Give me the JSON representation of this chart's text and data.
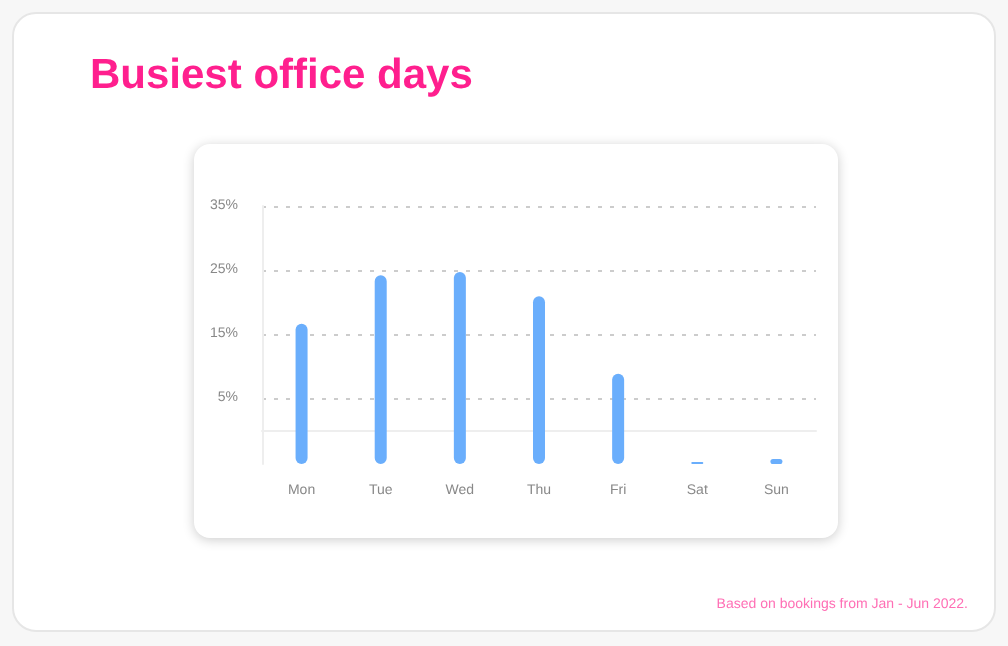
{
  "chart_data": {
    "type": "bar",
    "title": "Busiest office days",
    "annotations": [
      "Based on bookings from Jan - Jun 2022."
    ],
    "categories": [
      "Mon",
      "Tue",
      "Wed",
      "Thu",
      "Fri",
      "Sat",
      "Sun"
    ],
    "base": [
      -5.3,
      -5.3,
      -5.3,
      -5.3,
      -5.3,
      -5.3,
      -5.3
    ],
    "values": [
      21.9,
      29.5,
      30.0,
      26.2,
      14.1,
      0.3,
      0.8
    ],
    "color": "#6aaefc",
    "ylim": [
      -5.3,
      35
    ],
    "yticks": [
      {
        "value": 5,
        "label": "5%"
      },
      {
        "value": 15,
        "label": "15%"
      },
      {
        "value": 25,
        "label": "25%"
      },
      {
        "value": 35,
        "label": "35%"
      }
    ],
    "grid": "y"
  }
}
